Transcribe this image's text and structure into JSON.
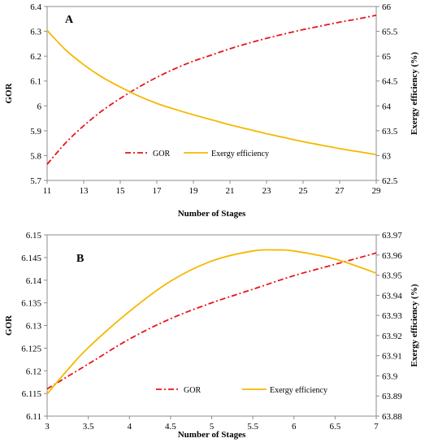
{
  "chart_data": [
    {
      "type": "line",
      "panel_label": "A",
      "xlabel": "Number of Stages",
      "ylabel": "GOR",
      "y2label": "Exergy efficiency (%)",
      "xlim": [
        11,
        29
      ],
      "ylim": [
        5.7,
        6.4
      ],
      "y2lim": [
        62.5,
        66
      ],
      "xticks": [
        "11",
        "13",
        "15",
        "17",
        "19",
        "21",
        "23",
        "25",
        "27",
        "29"
      ],
      "yticks": [
        "5.7",
        "5.8",
        "5.9",
        "6",
        "6.1",
        "6.2",
        "6.3",
        "6.4"
      ],
      "y2ticks": [
        "62.5",
        "63",
        "63.5",
        "64",
        "64.5",
        "65",
        "65.5",
        "66"
      ],
      "legend_position": "lower-center",
      "series": [
        {
          "name": "GOR",
          "axis": "left",
          "color": "#e8141c",
          "style": "dash-dot",
          "x": [
            11,
            12,
            13,
            14,
            15,
            16,
            17,
            18,
            19,
            20,
            21,
            22,
            23,
            24,
            25,
            26,
            27,
            28,
            29
          ],
          "values": [
            5.765,
            5.85,
            5.92,
            5.98,
            6.03,
            6.075,
            6.115,
            6.15,
            6.18,
            6.205,
            6.23,
            6.252,
            6.272,
            6.29,
            6.307,
            6.322,
            6.337,
            6.35,
            6.365
          ]
        },
        {
          "name": "Exergy efficiency",
          "axis": "right",
          "color": "#f5b800",
          "style": "solid",
          "x": [
            11,
            12,
            13,
            14,
            15,
            16,
            17,
            18,
            19,
            20,
            21,
            22,
            23,
            24,
            25,
            26,
            27,
            28,
            29
          ],
          "values": [
            65.52,
            65.13,
            64.83,
            64.58,
            64.38,
            64.2,
            64.05,
            63.93,
            63.82,
            63.72,
            63.62,
            63.53,
            63.44,
            63.36,
            63.28,
            63.21,
            63.14,
            63.08,
            63.02
          ]
        }
      ]
    },
    {
      "type": "line",
      "panel_label": "B",
      "xlabel": "Number of Stages",
      "ylabel": "GOR",
      "y2label": "Exergy efficiency (%)",
      "xlim": [
        3,
        7
      ],
      "ylim": [
        6.11,
        6.15
      ],
      "y2lim": [
        63.88,
        63.97
      ],
      "xticks": [
        "3",
        "3.5",
        "4",
        "4.5",
        "5",
        "5.5",
        "6",
        "6.5",
        "7"
      ],
      "yticks": [
        "6.11",
        "6.115",
        "6.12",
        "6.125",
        "6.13",
        "6.135",
        "6.14",
        "6.145",
        "6.15"
      ],
      "y2ticks": [
        "63.88",
        "63.89",
        "63.9",
        "63.91",
        "63.92",
        "63.93",
        "63.94",
        "63.95",
        "63.96",
        "63.97"
      ],
      "legend_position": "lower-center",
      "series": [
        {
          "name": "GOR",
          "axis": "left",
          "color": "#e8141c",
          "style": "dash-dot",
          "x": [
            3,
            3.5,
            4,
            4.5,
            5,
            5.5,
            6,
            6.5,
            7
          ],
          "values": [
            6.116,
            6.1215,
            6.127,
            6.1315,
            6.135,
            6.138,
            6.141,
            6.1435,
            6.146
          ]
        },
        {
          "name": "Exergy efficiency",
          "axis": "right",
          "color": "#f5b800",
          "style": "solid",
          "x": [
            3,
            3.25,
            3.5,
            4,
            4.5,
            5,
            5.5,
            5.8,
            6,
            6.5,
            7
          ],
          "values": [
            63.891,
            63.903,
            63.914,
            63.932,
            63.947,
            63.957,
            63.962,
            63.9625,
            63.962,
            63.958,
            63.951
          ]
        }
      ]
    }
  ]
}
